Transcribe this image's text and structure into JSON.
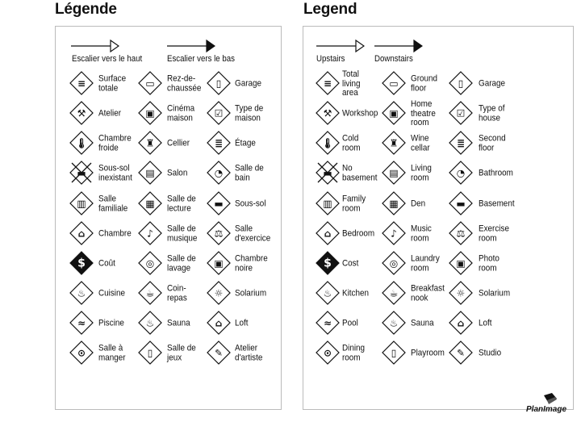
{
  "left": {
    "title": "Légende",
    "stairs_up": "Escalier vers le haut",
    "stairs_down": "Escalier vers le bas",
    "items": [
      {
        "label": "Surface\ntotale",
        "icon": "total-area"
      },
      {
        "label": "Rez-de-\nchaussée",
        "icon": "ground-floor"
      },
      {
        "label": "Garage",
        "icon": "garage"
      },
      {
        "label": "Atelier",
        "icon": "workshop"
      },
      {
        "label": "Cinéma\nmaison",
        "icon": "home-theatre"
      },
      {
        "label": "Type de\nmaison",
        "icon": "house-type"
      },
      {
        "label": "Chambre\nfroide",
        "icon": "cold-room"
      },
      {
        "label": "Cellier",
        "icon": "wine-cellar"
      },
      {
        "label": "Étage",
        "icon": "second-floor"
      },
      {
        "label": "Sous-sol\ninexistant",
        "icon": "no-basement"
      },
      {
        "label": "Salon",
        "icon": "living-room"
      },
      {
        "label": "Salle de\nbain",
        "icon": "bathroom"
      },
      {
        "label": "Salle\nfamiliale",
        "icon": "family-room"
      },
      {
        "label": "Salle de\nlecture",
        "icon": "den"
      },
      {
        "label": "Sous-sol",
        "icon": "basement"
      },
      {
        "label": "Chambre",
        "icon": "bedroom"
      },
      {
        "label": "Salle de\nmusique",
        "icon": "music-room"
      },
      {
        "label": "Salle\nd'exercice",
        "icon": "exercise-room"
      },
      {
        "label": "Coût",
        "icon": "cost"
      },
      {
        "label": "Salle de\nlavage",
        "icon": "laundry-room"
      },
      {
        "label": "Chambre\nnoire",
        "icon": "photo-room"
      },
      {
        "label": "Cuisine",
        "icon": "kitchen"
      },
      {
        "label": "Coin-\nrepas",
        "icon": "breakfast-nook"
      },
      {
        "label": "Solarium",
        "icon": "solarium"
      },
      {
        "label": "Piscine",
        "icon": "pool"
      },
      {
        "label": "Sauna",
        "icon": "sauna"
      },
      {
        "label": "Loft",
        "icon": "loft"
      },
      {
        "label": "Salle à\nmanger",
        "icon": "dining-room"
      },
      {
        "label": "Salle de\njeux",
        "icon": "playroom"
      },
      {
        "label": "Atelier\nd'artiste",
        "icon": "studio"
      }
    ]
  },
  "right": {
    "title": "Legend",
    "stairs_up": "Upstairs",
    "stairs_down": "Downstairs",
    "items": [
      {
        "label": "Total\nliving\narea",
        "icon": "total-area"
      },
      {
        "label": "Ground\nfloor",
        "icon": "ground-floor"
      },
      {
        "label": "Garage",
        "icon": "garage"
      },
      {
        "label": "Workshop",
        "icon": "workshop"
      },
      {
        "label": "Home\ntheatre\nroom",
        "icon": "home-theatre"
      },
      {
        "label": "Type of\nhouse",
        "icon": "house-type"
      },
      {
        "label": "Cold\nroom",
        "icon": "cold-room"
      },
      {
        "label": "Wine\ncellar",
        "icon": "wine-cellar"
      },
      {
        "label": "Second\nfloor",
        "icon": "second-floor"
      },
      {
        "label": "No\nbasement",
        "icon": "no-basement"
      },
      {
        "label": "Living\nroom",
        "icon": "living-room"
      },
      {
        "label": "Bathroom",
        "icon": "bathroom"
      },
      {
        "label": "Family\nroom",
        "icon": "family-room"
      },
      {
        "label": "Den",
        "icon": "den"
      },
      {
        "label": "Basement",
        "icon": "basement"
      },
      {
        "label": "Bedroom",
        "icon": "bedroom"
      },
      {
        "label": "Music\nroom",
        "icon": "music-room"
      },
      {
        "label": "Exercise\nroom",
        "icon": "exercise-room"
      },
      {
        "label": "Cost",
        "icon": "cost"
      },
      {
        "label": "Laundry\nroom",
        "icon": "laundry-room"
      },
      {
        "label": "Photo\nroom",
        "icon": "photo-room"
      },
      {
        "label": "Kitchen",
        "icon": "kitchen"
      },
      {
        "label": "Breakfast\nnook",
        "icon": "breakfast-nook"
      },
      {
        "label": "Solarium",
        "icon": "solarium"
      },
      {
        "label": "Pool",
        "icon": "pool"
      },
      {
        "label": "Sauna",
        "icon": "sauna"
      },
      {
        "label": "Loft",
        "icon": "loft"
      },
      {
        "label": "Dining\nroom",
        "icon": "dining-room"
      },
      {
        "label": "Playroom",
        "icon": "playroom"
      },
      {
        "label": "Studio",
        "icon": "studio"
      }
    ]
  },
  "logo": {
    "text": "PlanImage"
  }
}
